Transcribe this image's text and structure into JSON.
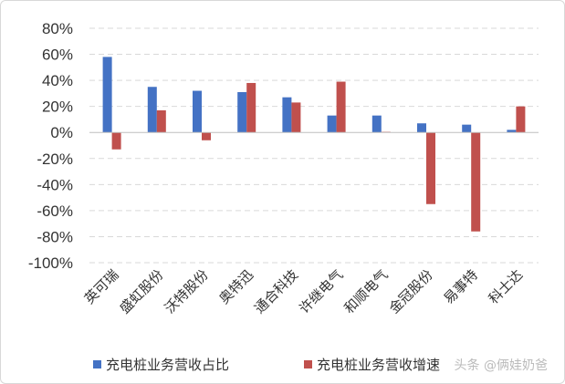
{
  "chart_data": {
    "type": "bar",
    "title": "",
    "xlabel": "",
    "ylabel": "",
    "categories": [
      "英可瑞",
      "盛虹股份",
      "沃特股份",
      "奥特迅",
      "通合科技",
      "许继电气",
      "和顺电气",
      "金冠股份",
      "易事特",
      "科士达"
    ],
    "series": [
      {
        "name": "充电桩业务营收占比",
        "color": "#4472C4",
        "values": [
          58,
          35,
          32,
          31,
          27,
          13,
          13,
          7,
          6,
          2
        ]
      },
      {
        "name": "充电桩业务营收增速",
        "color": "#C0504D",
        "values": [
          -13,
          17,
          -6,
          38,
          23,
          39,
          0.5,
          -55,
          -76,
          20
        ]
      }
    ],
    "ylim": [
      -100,
      80
    ],
    "yticks": [
      80,
      60,
      40,
      20,
      0,
      -20,
      -40,
      -60,
      -80,
      -100
    ],
    "ytick_labels": [
      "80%",
      "60%",
      "40%",
      "20%",
      "0%",
      "-20%",
      "-40%",
      "-60%",
      "-80%",
      "-100%"
    ],
    "grid": true,
    "gridline_color": "#d9d9d9",
    "legend_placement": "bottom"
  },
  "watermark": "头条 @俩娃奶爸"
}
